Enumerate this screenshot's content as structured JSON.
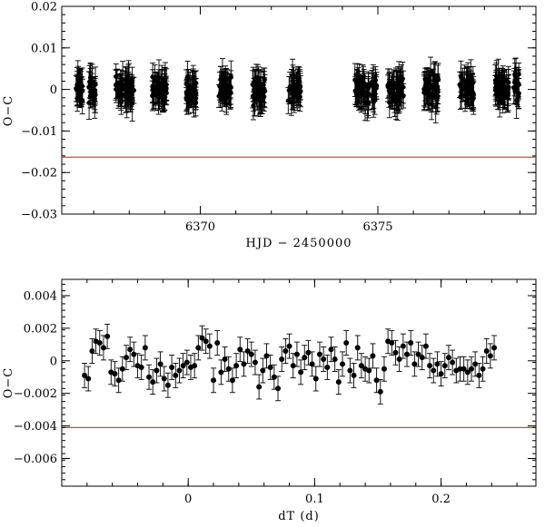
{
  "chart_data": [
    {
      "type": "scatter",
      "xlabel": "HJD − 2450000",
      "ylabel": "O−C",
      "xlim": [
        6366.1,
        6379.45
      ],
      "ylim": [
        -0.03,
        0.02
      ],
      "x_ticks": [
        {
          "value": 6370,
          "label": "6370"
        },
        {
          "value": 6375,
          "label": "6375"
        }
      ],
      "y_ticks": [
        {
          "value": 0.02,
          "label": "0.02"
        },
        {
          "value": 0.01,
          "label": "0.01"
        },
        {
          "value": 0,
          "label": "0"
        },
        {
          "value": -0.01,
          "label": "−0.01"
        },
        {
          "value": -0.02,
          "label": "−0.02"
        },
        {
          "value": -0.03,
          "label": "−0.03"
        }
      ],
      "threshold": -0.0163,
      "threshold_color": "#e23b3b",
      "typical_error": 0.0035,
      "point_color": "#000000",
      "nights": [
        {
          "center": 6366.6,
          "width": 0.25,
          "spread": 0.0028
        },
        {
          "center": 6366.95,
          "width": 0.2,
          "spread": 0.0026
        },
        {
          "center": 6367.72,
          "width": 0.2,
          "spread": 0.0026
        },
        {
          "center": 6368.0,
          "width": 0.28,
          "spread": 0.003
        },
        {
          "center": 6368.85,
          "width": 0.4,
          "spread": 0.0028
        },
        {
          "center": 6369.75,
          "width": 0.3,
          "spread": 0.0026
        },
        {
          "center": 6370.7,
          "width": 0.35,
          "spread": 0.0028
        },
        {
          "center": 6371.65,
          "width": 0.35,
          "spread": 0.0029
        },
        {
          "center": 6372.65,
          "width": 0.35,
          "spread": 0.0024
        },
        {
          "center": 6374.55,
          "width": 0.4,
          "spread": 0.0028
        },
        {
          "center": 6374.9,
          "width": 0.15,
          "spread": 0.003
        },
        {
          "center": 6375.5,
          "width": 0.45,
          "spread": 0.003
        },
        {
          "center": 6376.5,
          "width": 0.4,
          "spread": 0.003
        },
        {
          "center": 6377.5,
          "width": 0.4,
          "spread": 0.0026
        },
        {
          "center": 6378.5,
          "width": 0.4,
          "spread": 0.0027
        },
        {
          "center": 6378.9,
          "width": 0.15,
          "spread": 0.003
        }
      ]
    },
    {
      "type": "scatter",
      "xlabel": "dT (d)",
      "ylabel": "O−C",
      "xlim": [
        -0.1,
        0.275
      ],
      "ylim": [
        -0.0077,
        0.005
      ],
      "x_ticks": [
        {
          "value": 0,
          "label": "0"
        },
        {
          "value": 0.1,
          "label": "0.1"
        },
        {
          "value": 0.2,
          "label": "0.2"
        }
      ],
      "y_ticks": [
        {
          "value": 0.004,
          "label": "0.004"
        },
        {
          "value": 0.002,
          "label": "0.002"
        },
        {
          "value": 0,
          "label": "0"
        },
        {
          "value": -0.002,
          "label": "−0.002"
        },
        {
          "value": -0.004,
          "label": "−0.004"
        },
        {
          "value": -0.006,
          "label": "−0.006"
        }
      ],
      "threshold": -0.0041,
      "threshold_color": "#e23b3b",
      "error": 0.00075,
      "point_color": "#000000",
      "x": [
        -0.082,
        -0.079,
        -0.076,
        -0.073,
        -0.07,
        -0.067,
        -0.064,
        -0.061,
        -0.058,
        -0.055,
        -0.052,
        -0.049,
        -0.046,
        -0.043,
        -0.04,
        -0.037,
        -0.034,
        -0.031,
        -0.028,
        -0.025,
        -0.022,
        -0.019,
        -0.016,
        -0.013,
        -0.01,
        -0.007,
        -0.004,
        -0.001,
        0.002,
        0.005,
        0.008,
        0.011,
        0.014,
        0.017,
        0.02,
        0.023,
        0.026,
        0.029,
        0.032,
        0.035,
        0.038,
        0.041,
        0.044,
        0.047,
        0.05,
        0.053,
        0.056,
        0.059,
        0.062,
        0.065,
        0.068,
        0.071,
        0.074,
        0.077,
        0.08,
        0.083,
        0.086,
        0.089,
        0.092,
        0.095,
        0.098,
        0.101,
        0.104,
        0.107,
        0.11,
        0.113,
        0.116,
        0.119,
        0.122,
        0.125,
        0.128,
        0.131,
        0.134,
        0.137,
        0.14,
        0.143,
        0.146,
        0.149,
        0.152,
        0.155,
        0.158,
        0.161,
        0.164,
        0.167,
        0.17,
        0.173,
        0.176,
        0.179,
        0.182,
        0.185,
        0.188,
        0.191,
        0.194,
        0.197,
        0.2,
        0.203,
        0.206,
        0.209,
        0.212,
        0.215,
        0.218,
        0.221,
        0.224,
        0.227,
        0.23,
        0.233,
        0.236,
        0.239,
        0.242
      ],
      "y": [
        -0.0009,
        -0.0011,
        0.0006,
        0.0012,
        0.0011,
        0.0008,
        0.0015,
        -0.0007,
        -0.0008,
        -0.0012,
        -0.0005,
        0.0002,
        0.0007,
        0.0004,
        -0.0003,
        -0.0004,
        0.0008,
        -0.001,
        -0.0013,
        -0.0006,
        -0.0002,
        -0.0011,
        -0.0015,
        -0.0004,
        -0.0009,
        -0.0006,
        -0.0003,
        -0.0001,
        -0.0004,
        -0.0003,
        0.0008,
        0.0014,
        0.0012,
        0.0009,
        -0.0012,
        0.0011,
        -0.0007,
        0.0001,
        -0.0005,
        -0.0012,
        -0.0003,
        0.0007,
        -0.0002,
        0.0006,
        0.0004,
        -0.0001,
        -0.0016,
        -0.0006,
        0.0003,
        -0.0004,
        -0.001,
        -0.0017,
        0.0001,
        0.0006,
        0.0009,
        -0.0003,
        0.0004,
        -0.0007,
        0.0002,
        0.0005,
        -0.0002,
        -0.0011,
        0.0004,
        0.0001,
        -0.0004,
        0.0007,
        0.0001,
        -0.0013,
        -0.0002,
        0.0011,
        -0.0006,
        -0.0009,
        0.0008,
        -0.0003,
        -0.0005,
        -0.0006,
        0.0003,
        -0.0012,
        -0.0019,
        -0.0005,
        0.0012,
        0.0011,
        0.0005,
        0.0001,
        0.0009,
        0.0004,
        0.0011,
        -0.0002,
        0.0004,
        0.0002,
        0.0009,
        -0.0003,
        -0.0006,
        -0.0002,
        -0.0008,
        -0.0003,
        0.0002,
        -0.0001,
        -0.0006,
        -0.0005,
        -0.0005,
        -0.0007,
        -0.0005,
        -0.0002,
        -0.0009,
        -0.0005,
        0.0006,
        0.0003,
        0.0008
      ]
    }
  ]
}
